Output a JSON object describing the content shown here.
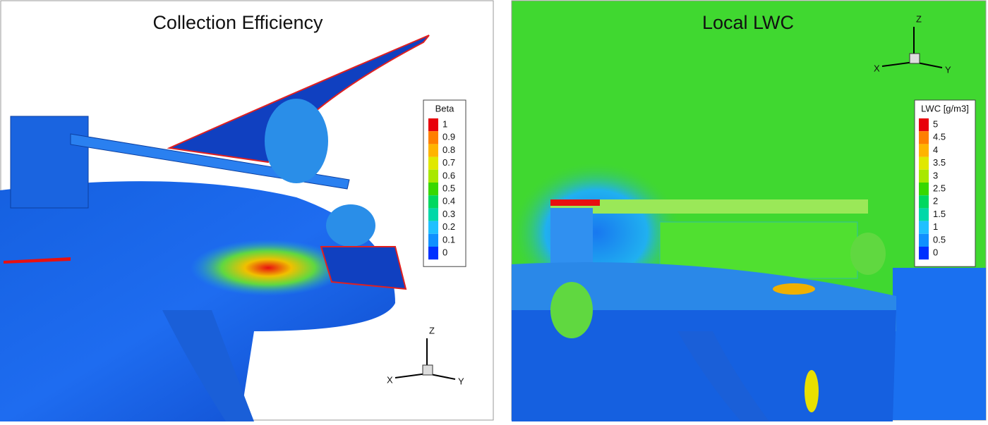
{
  "panels": [
    {
      "title": "Collection Efficiency",
      "legend": {
        "title": "Beta",
        "labels": [
          1,
          0.9,
          0.8,
          0.7,
          0.6,
          0.5,
          0.4,
          0.3,
          0.2,
          0.1,
          0
        ]
      },
      "axes": {
        "z": "Z",
        "x": "X",
        "y": "Y"
      }
    },
    {
      "title": "Local LWC",
      "legend": {
        "title": "LWC [g/m3]",
        "labels": [
          5,
          4.5,
          4,
          3.5,
          3,
          2.5,
          2,
          1.5,
          1,
          0.5,
          0
        ]
      },
      "axes": {
        "z": "Z",
        "x": "X",
        "y": "Y"
      }
    }
  ]
}
